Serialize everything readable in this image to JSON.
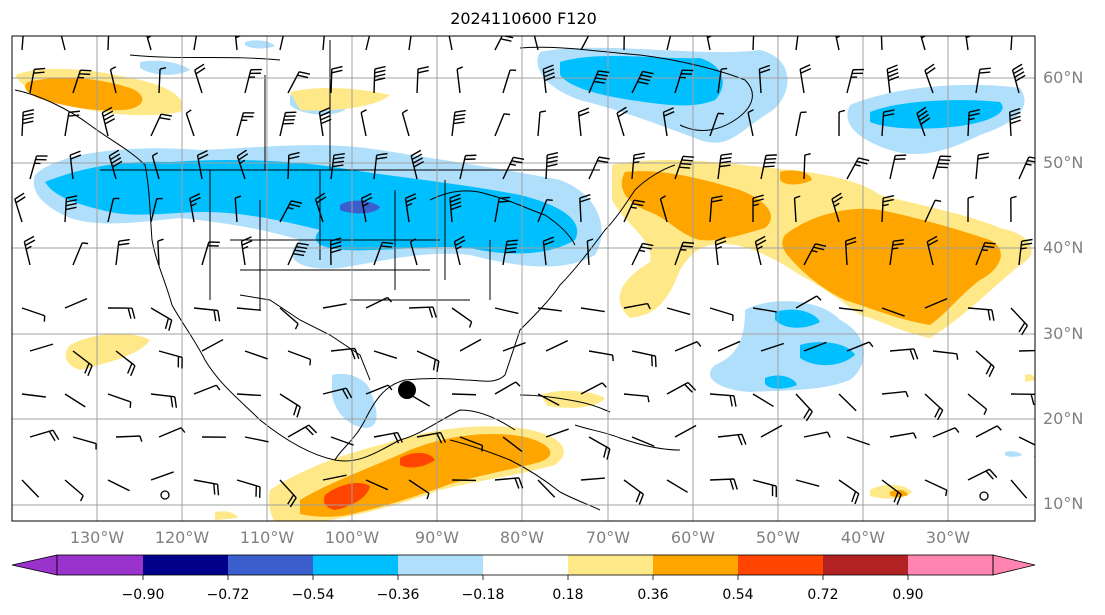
{
  "title": "2024110600 F120",
  "lat_labels": [
    "60°N",
    "50°N",
    "40°N",
    "30°N",
    "20°N",
    "10°N"
  ],
  "lon_labels": [
    "130°W",
    "120°W",
    "110°W",
    "100°W",
    "90°W",
    "80°W",
    "70°W",
    "60°W",
    "50°W",
    "40°W",
    "30°W"
  ],
  "colorbar": {
    "ticks": [
      "−0.90",
      "−0.72",
      "−0.54",
      "−0.36",
      "−0.18",
      "0.18",
      "0.36",
      "0.54",
      "0.72",
      "0.90"
    ],
    "colors": [
      "#9a33cc",
      "#00008b",
      "#3a5fcd",
      "#00bfff",
      "#afdffa",
      "#ffffff",
      "#ffe887",
      "#ffa500",
      "#ff4500",
      "#b22222",
      "#ff85b0"
    ]
  },
  "map": {
    "fill_colors": {
      "light_blue": "#afdffa",
      "blue": "#00bfff",
      "dark_blue": "#3a5fcd",
      "yellow": "#ffe887",
      "orange": "#ffa500",
      "red_orange": "#ff4500"
    },
    "marker": "storm-center-dot",
    "grid": true
  }
}
